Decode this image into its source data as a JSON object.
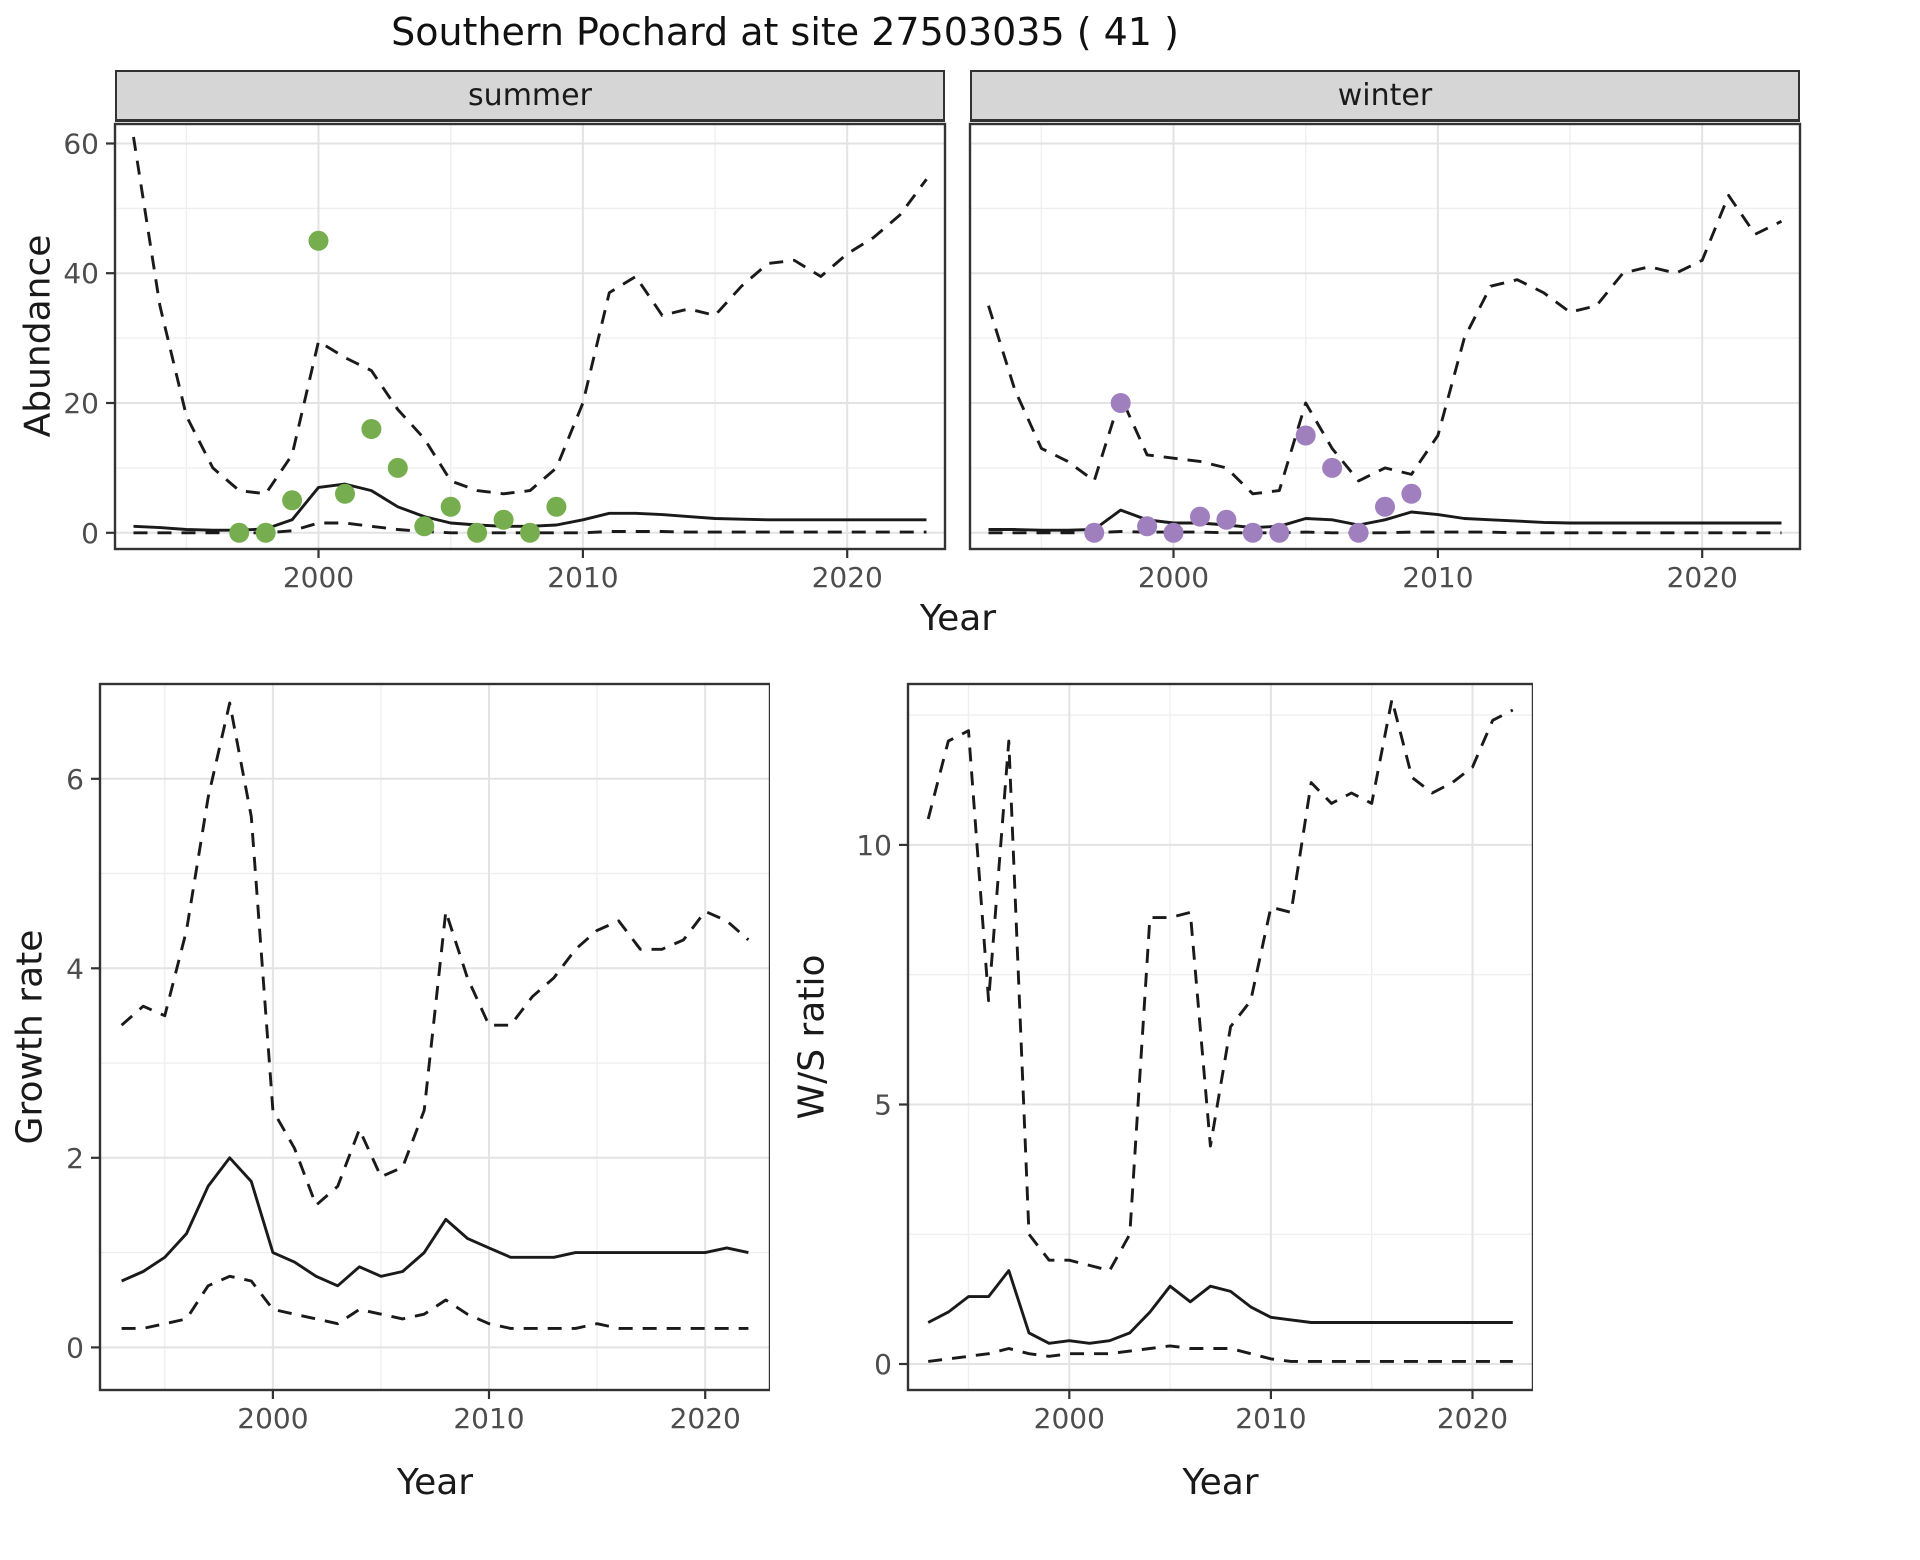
{
  "title": "Southern Pochard at site 27503035 ( 41 )",
  "labels": {
    "abundance": "Abundance",
    "year": "Year",
    "growth_rate": "Growth rate",
    "ws_ratio": "W/S ratio"
  },
  "colors": {
    "line": "#1a1a1a",
    "summer_points": "#76ad4e",
    "winter_points": "#9f7fbe",
    "strip_bg": "#d6d6d6",
    "grid_major": "#e3e3e3",
    "grid_minor": "#efefef",
    "panel_border": "#333333",
    "tick_mark": "#333333",
    "tick_label": "#4d4d4d",
    "panel_bg": "#ffffff"
  },
  "chart_data": [
    {
      "id": "abundance-summer",
      "type": "line",
      "facet": "summer",
      "xlabel": "Year",
      "ylabel": "Abundance",
      "xlim": [
        1992.3,
        2023.7
      ],
      "ylim": [
        -2.5,
        63
      ],
      "xticks": [
        2000,
        2010,
        2020
      ],
      "xminor": [
        1995,
        2005,
        2015
      ],
      "yticks": [
        0,
        20,
        40,
        60
      ],
      "yminor": [
        10,
        30,
        50
      ],
      "grid": true,
      "legend": "none",
      "series": [
        {
          "name": "upper-95ci",
          "style": "dashed",
          "x": [
            1993,
            1994,
            1995,
            1996,
            1997,
            1998,
            1999,
            2000,
            2001,
            2002,
            2003,
            2004,
            2005,
            2006,
            2007,
            2008,
            2009,
            2010,
            2011,
            2012,
            2013,
            2014,
            2015,
            2016,
            2017,
            2018,
            2019,
            2020,
            2021,
            2022,
            2023
          ],
          "y": [
            61,
            35,
            18,
            10,
            6.5,
            6,
            12,
            29.5,
            27,
            25,
            19,
            14.5,
            8,
            6.5,
            6,
            6.5,
            10,
            20,
            37,
            39.5,
            33.5,
            34.5,
            33.5,
            38,
            41.5,
            42,
            39.5,
            43,
            45.5,
            49,
            54.5
          ]
        },
        {
          "name": "median",
          "style": "solid",
          "x": [
            1993,
            1994,
            1995,
            1996,
            1997,
            1998,
            1999,
            2000,
            2001,
            2002,
            2003,
            2004,
            2005,
            2006,
            2007,
            2008,
            2009,
            2010,
            2011,
            2012,
            2013,
            2014,
            2015,
            2016,
            2017,
            2018,
            2019,
            2020,
            2021,
            2022,
            2023
          ],
          "y": [
            1,
            0.8,
            0.5,
            0.4,
            0.4,
            0.6,
            2,
            7,
            7.5,
            6.5,
            4,
            2.5,
            1.5,
            1.2,
            1,
            1,
            1.2,
            2,
            3,
            3,
            2.8,
            2.5,
            2.2,
            2.1,
            2,
            2,
            2,
            2,
            2,
            2,
            2
          ]
        },
        {
          "name": "lower-95ci",
          "style": "dashed",
          "x": [
            1993,
            1994,
            1995,
            1996,
            1997,
            1998,
            1999,
            2000,
            2001,
            2002,
            2003,
            2004,
            2005,
            2006,
            2007,
            2008,
            2009,
            2010,
            2011,
            2012,
            2013,
            2014,
            2015,
            2016,
            2017,
            2018,
            2019,
            2020,
            2021,
            2022,
            2023
          ],
          "y": [
            0,
            0,
            0,
            0,
            0,
            0,
            0.3,
            1.5,
            1.5,
            1,
            0.5,
            0.2,
            0,
            0,
            0,
            0,
            0,
            0,
            0.2,
            0.2,
            0.2,
            0.1,
            0.1,
            0.1,
            0.1,
            0.1,
            0.1,
            0.1,
            0.1,
            0.1,
            0.1
          ]
        }
      ],
      "points": {
        "name": "observed-summer-counts",
        "color_key": "summer_points",
        "x": [
          1997,
          1998,
          1999,
          2000,
          2001,
          2002,
          2003,
          2004,
          2005,
          2006,
          2007,
          2008,
          2009
        ],
        "y": [
          0,
          0,
          5,
          45,
          6,
          16,
          10,
          1,
          4,
          0,
          2,
          0,
          4
        ]
      }
    },
    {
      "id": "abundance-winter",
      "type": "line",
      "facet": "winter",
      "xlabel": "Year",
      "ylabel": "Abundance",
      "xlim": [
        1992.3,
        2023.7
      ],
      "ylim": [
        -2.5,
        63
      ],
      "xticks": [
        2000,
        2010,
        2020
      ],
      "xminor": [
        1995,
        2005,
        2015
      ],
      "yticks": [
        0,
        20,
        40,
        60
      ],
      "yminor": [
        10,
        30,
        50
      ],
      "grid": true,
      "legend": "none",
      "series": [
        {
          "name": "upper-95ci",
          "style": "dashed",
          "x": [
            1993,
            1994,
            1995,
            1996,
            1997,
            1998,
            1999,
            2000,
            2001,
            2002,
            2003,
            2004,
            2005,
            2006,
            2007,
            2008,
            2009,
            2010,
            2011,
            2012,
            2013,
            2014,
            2015,
            2016,
            2017,
            2018,
            2019,
            2020,
            2021,
            2022,
            2023
          ],
          "y": [
            35,
            22,
            13,
            11,
            8,
            21,
            12,
            11.5,
            11,
            10,
            6,
            6.5,
            20,
            13,
            8,
            10,
            9,
            15,
            30,
            38,
            39,
            37,
            34,
            35,
            40,
            41,
            40,
            42,
            52,
            46,
            48
          ]
        },
        {
          "name": "median",
          "style": "solid",
          "x": [
            1993,
            1994,
            1995,
            1996,
            1997,
            1998,
            1999,
            2000,
            2001,
            2002,
            2003,
            2004,
            2005,
            2006,
            2007,
            2008,
            2009,
            2010,
            2011,
            2012,
            2013,
            2014,
            2015,
            2016,
            2017,
            2018,
            2019,
            2020,
            2021,
            2022,
            2023
          ],
          "y": [
            0.5,
            0.5,
            0.4,
            0.4,
            0.5,
            3.5,
            2,
            1.5,
            1.5,
            1.2,
            0.8,
            1,
            2.2,
            2,
            1.2,
            2,
            3.2,
            2.8,
            2.2,
            2,
            1.8,
            1.6,
            1.5,
            1.5,
            1.5,
            1.5,
            1.5,
            1.5,
            1.5,
            1.5,
            1.5
          ]
        },
        {
          "name": "lower-95ci",
          "style": "dashed",
          "x": [
            1993,
            1994,
            1995,
            1996,
            1997,
            1998,
            1999,
            2000,
            2001,
            2002,
            2003,
            2004,
            2005,
            2006,
            2007,
            2008,
            2009,
            2010,
            2011,
            2012,
            2013,
            2014,
            2015,
            2016,
            2017,
            2018,
            2019,
            2020,
            2021,
            2022,
            2023
          ],
          "y": [
            0,
            0,
            0,
            0,
            0,
            0.2,
            0.1,
            0.1,
            0.1,
            0,
            0,
            0,
            0.1,
            0,
            0,
            0,
            0.1,
            0.1,
            0.1,
            0.1,
            0,
            0,
            0,
            0,
            0,
            0,
            0,
            0,
            0,
            0,
            0
          ]
        }
      ],
      "points": {
        "name": "observed-winter-counts",
        "color_key": "winter_points",
        "x": [
          1997,
          1998,
          1999,
          2000,
          2001,
          2002,
          2003,
          2004,
          2005,
          2006,
          2007,
          2008,
          2009
        ],
        "y": [
          0,
          20,
          1,
          0,
          2.5,
          2,
          0,
          0,
          15,
          10,
          0,
          4,
          6
        ]
      }
    },
    {
      "id": "growth-rate",
      "type": "line",
      "facet": "",
      "xlabel": "Year",
      "ylabel": "Growth rate",
      "xlim": [
        1992,
        2023
      ],
      "ylim": [
        -0.45,
        7.0
      ],
      "xticks": [
        2000,
        2010,
        2020
      ],
      "xminor": [
        1995,
        2005,
        2015
      ],
      "yticks": [
        0,
        2,
        4,
        6
      ],
      "yminor": [
        1,
        3,
        5
      ],
      "grid": true,
      "legend": "none",
      "series": [
        {
          "name": "upper-95ci",
          "style": "dashed",
          "x": [
            1993,
            1994,
            1995,
            1996,
            1997,
            1998,
            1999,
            2000,
            2001,
            2002,
            2003,
            2004,
            2005,
            2006,
            2007,
            2008,
            2009,
            2010,
            2011,
            2012,
            2013,
            2014,
            2015,
            2016,
            2017,
            2018,
            2019,
            2020,
            2021,
            2022
          ],
          "y": [
            3.4,
            3.6,
            3.5,
            4.4,
            5.8,
            6.8,
            5.6,
            2.5,
            2.1,
            1.5,
            1.7,
            2.3,
            1.8,
            1.9,
            2.5,
            4.6,
            3.9,
            3.4,
            3.4,
            3.7,
            3.9,
            4.2,
            4.4,
            4.5,
            4.2,
            4.2,
            4.3,
            4.6,
            4.5,
            4.3
          ]
        },
        {
          "name": "median",
          "style": "solid",
          "x": [
            1993,
            1994,
            1995,
            1996,
            1997,
            1998,
            1999,
            2000,
            2001,
            2002,
            2003,
            2004,
            2005,
            2006,
            2007,
            2008,
            2009,
            2010,
            2011,
            2012,
            2013,
            2014,
            2015,
            2016,
            2017,
            2018,
            2019,
            2020,
            2021,
            2022
          ],
          "y": [
            0.7,
            0.8,
            0.95,
            1.2,
            1.7,
            2.0,
            1.75,
            1.0,
            0.9,
            0.75,
            0.65,
            0.85,
            0.75,
            0.8,
            1.0,
            1.35,
            1.15,
            1.05,
            0.95,
            0.95,
            0.95,
            1.0,
            1.0,
            1.0,
            1.0,
            1.0,
            1.0,
            1.0,
            1.05,
            1.0
          ]
        },
        {
          "name": "lower-95ci",
          "style": "dashed",
          "x": [
            1993,
            1994,
            1995,
            1996,
            1997,
            1998,
            1999,
            2000,
            2001,
            2002,
            2003,
            2004,
            2005,
            2006,
            2007,
            2008,
            2009,
            2010,
            2011,
            2012,
            2013,
            2014,
            2015,
            2016,
            2017,
            2018,
            2019,
            2020,
            2021,
            2022
          ],
          "y": [
            0.2,
            0.2,
            0.25,
            0.3,
            0.65,
            0.75,
            0.7,
            0.4,
            0.35,
            0.3,
            0.25,
            0.4,
            0.35,
            0.3,
            0.35,
            0.5,
            0.35,
            0.25,
            0.2,
            0.2,
            0.2,
            0.2,
            0.25,
            0.2,
            0.2,
            0.2,
            0.2,
            0.2,
            0.2,
            0.2
          ]
        }
      ],
      "points": null
    },
    {
      "id": "ws-ratio",
      "type": "line",
      "facet": "",
      "xlabel": "Year",
      "ylabel": "W/S ratio",
      "xlim": [
        1992,
        2023
      ],
      "ylim": [
        -0.5,
        13.1
      ],
      "xticks": [
        2000,
        2010,
        2020
      ],
      "xminor": [
        1995,
        2005,
        2015
      ],
      "yticks": [
        0,
        5,
        10
      ],
      "yminor": [
        2.5,
        7.5,
        12.5
      ],
      "grid": true,
      "legend": "none",
      "series": [
        {
          "name": "upper-95ci",
          "style": "dashed",
          "x": [
            1993,
            1994,
            1995,
            1996,
            1997,
            1998,
            1999,
            2000,
            2001,
            2002,
            2003,
            2004,
            2005,
            2006,
            2007,
            2008,
            2009,
            2010,
            2011,
            2012,
            2013,
            2014,
            2015,
            2016,
            2017,
            2018,
            2019,
            2020,
            2021,
            2022
          ],
          "y": [
            10.5,
            12,
            12.2,
            7,
            12,
            2.5,
            2,
            2,
            1.9,
            1.8,
            2.5,
            8.6,
            8.6,
            8.7,
            4.2,
            6.5,
            7,
            8.8,
            8.7,
            11.2,
            10.8,
            11,
            10.8,
            12.8,
            11.3,
            11,
            11.2,
            11.5,
            12.4,
            12.6
          ]
        },
        {
          "name": "median",
          "style": "solid",
          "x": [
            1993,
            1994,
            1995,
            1996,
            1997,
            1998,
            1999,
            2000,
            2001,
            2002,
            2003,
            2004,
            2005,
            2006,
            2007,
            2008,
            2009,
            2010,
            2011,
            2012,
            2013,
            2014,
            2015,
            2016,
            2017,
            2018,
            2019,
            2020,
            2021,
            2022
          ],
          "y": [
            0.8,
            1.0,
            1.3,
            1.3,
            1.8,
            0.6,
            0.4,
            0.45,
            0.4,
            0.45,
            0.6,
            1.0,
            1.5,
            1.2,
            1.5,
            1.4,
            1.1,
            0.9,
            0.85,
            0.8,
            0.8,
            0.8,
            0.8,
            0.8,
            0.8,
            0.8,
            0.8,
            0.8,
            0.8,
            0.8
          ]
        },
        {
          "name": "lower-95ci",
          "style": "dashed",
          "x": [
            1993,
            1994,
            1995,
            1996,
            1997,
            1998,
            1999,
            2000,
            2001,
            2002,
            2003,
            2004,
            2005,
            2006,
            2007,
            2008,
            2009,
            2010,
            2011,
            2012,
            2013,
            2014,
            2015,
            2016,
            2017,
            2018,
            2019,
            2020,
            2021,
            2022
          ],
          "y": [
            0.05,
            0.1,
            0.15,
            0.2,
            0.3,
            0.2,
            0.15,
            0.2,
            0.2,
            0.2,
            0.25,
            0.3,
            0.35,
            0.3,
            0.3,
            0.3,
            0.2,
            0.1,
            0.05,
            0.05,
            0.05,
            0.05,
            0.05,
            0.05,
            0.05,
            0.05,
            0.05,
            0.05,
            0.05,
            0.05
          ]
        }
      ],
      "points": null
    }
  ]
}
